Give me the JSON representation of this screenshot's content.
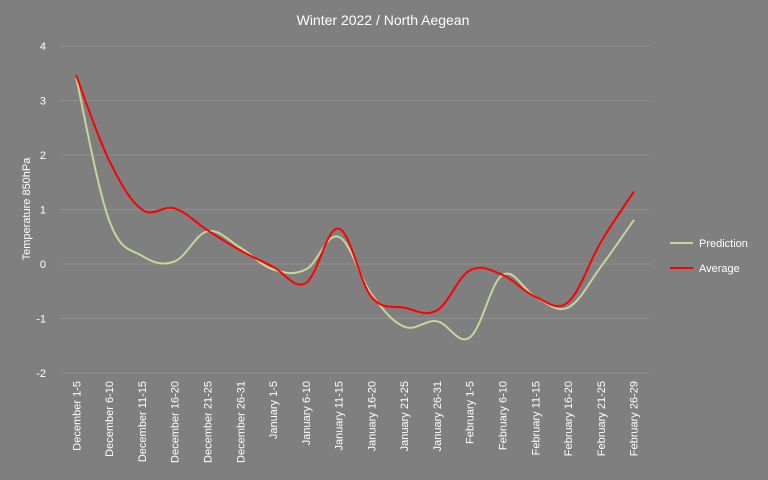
{
  "chart_data": {
    "type": "line",
    "title": "Winter 2022 / North Aegean",
    "xlabel": "",
    "ylabel": "Temperature 850hPa",
    "ylim": [
      -2,
      4
    ],
    "yticks": [
      -2,
      -1,
      0,
      1,
      2,
      3,
      4
    ],
    "grid": true,
    "legend": "right",
    "smooth": true,
    "categories": [
      "December 1-5",
      "December 6-10",
      "December 11-15",
      "December 16-20",
      "December 21-25",
      "December 26-31",
      "January 1-5",
      "January 6-10",
      "January 11-15",
      "January 16-20",
      "January 21-25",
      "January 26-31",
      "February 1-5",
      "February 6-10",
      "February 11-15",
      "February 16-20",
      "February 21-25",
      "February 26-29"
    ],
    "series": [
      {
        "name": "Prediction",
        "color": "#c4d79b",
        "values": [
          3.4,
          0.8,
          0.15,
          0.05,
          0.6,
          0.3,
          -0.1,
          -0.1,
          0.5,
          -0.55,
          -1.15,
          -1.05,
          -1.35,
          -0.2,
          -0.6,
          -0.8,
          -0.05,
          0.8
        ]
      },
      {
        "name": "Average",
        "color": "#ff0000",
        "values": [
          3.45,
          1.9,
          1.0,
          1.02,
          0.62,
          0.25,
          -0.05,
          -0.35,
          0.65,
          -0.6,
          -0.8,
          -0.85,
          -0.12,
          -0.2,
          -0.6,
          -0.7,
          0.4,
          1.32
        ]
      }
    ]
  }
}
